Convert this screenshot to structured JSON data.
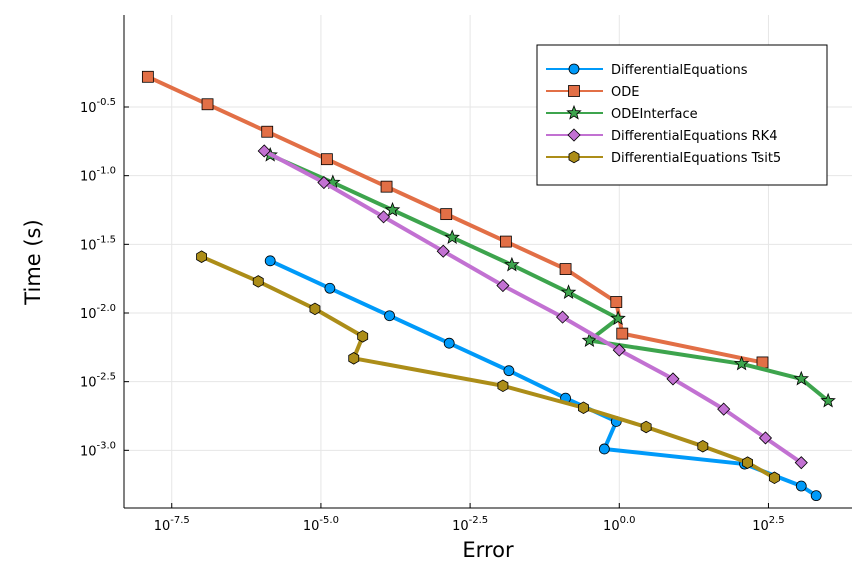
{
  "chart_data": {
    "type": "line",
    "title": "",
    "xlabel": "Error",
    "ylabel": "Time (s)",
    "xscale": "log10",
    "yscale": "log10",
    "xlim_log10": [
      -8.3,
      3.9
    ],
    "ylim_log10": [
      -3.42,
      0.17
    ],
    "grid": true,
    "legend_position": "top-right",
    "x_ticks": [
      {
        "base": "10",
        "exp": "-7.5",
        "value": -7.5
      },
      {
        "base": "10",
        "exp": "-5.0",
        "value": -5.0
      },
      {
        "base": "10",
        "exp": "-2.5",
        "value": -2.5
      },
      {
        "base": "10",
        "exp": "0.0",
        "value": 0.0
      },
      {
        "base": "10",
        "exp": "2.5",
        "value": 2.5
      }
    ],
    "y_ticks": [
      {
        "base": "10",
        "exp": "-0.5",
        "value": -0.5
      },
      {
        "base": "10",
        "exp": "-1.0",
        "value": -1.0
      },
      {
        "base": "10",
        "exp": "-1.5",
        "value": -1.5
      },
      {
        "base": "10",
        "exp": "-2.0",
        "value": -2.0
      },
      {
        "base": "10",
        "exp": "-2.5",
        "value": -2.5
      },
      {
        "base": "10",
        "exp": "-3.0",
        "value": -3.0
      }
    ],
    "series": [
      {
        "name": "DifferentialEquations",
        "color": "#009af9",
        "marker": "circle",
        "log10_error": [
          -5.85,
          -4.85,
          -3.85,
          -2.85,
          -1.85,
          -0.9,
          -0.05,
          -0.25,
          2.1,
          3.05,
          3.3
        ],
        "log10_time": [
          -1.62,
          -1.82,
          -2.02,
          -2.22,
          -2.42,
          -2.62,
          -2.79,
          -2.99,
          -3.1,
          -3.26,
          -3.33
        ]
      },
      {
        "name": "ODE",
        "color": "#e26f46",
        "marker": "square",
        "log10_error": [
          -7.9,
          -6.9,
          -5.9,
          -4.9,
          -3.9,
          -2.9,
          -1.9,
          -0.9,
          -0.05,
          0.05,
          2.4
        ],
        "log10_time": [
          -0.28,
          -0.48,
          -0.68,
          -0.88,
          -1.08,
          -1.28,
          -1.48,
          -1.68,
          -1.92,
          -2.15,
          -2.36
        ]
      },
      {
        "name": "ODEInterface",
        "color": "#3da44d",
        "marker": "star",
        "log10_error": [
          -5.85,
          -4.8,
          -3.8,
          -2.8,
          -1.8,
          -0.85,
          -0.02,
          -0.5,
          2.05,
          3.05,
          3.5
        ],
        "log10_time": [
          -0.85,
          -1.05,
          -1.25,
          -1.45,
          -1.65,
          -1.85,
          -2.04,
          -2.2,
          -2.37,
          -2.48,
          -2.64
        ]
      },
      {
        "name": "DifferentialEquations RK4",
        "color": "#c271d2",
        "marker": "diamond",
        "log10_error": [
          -5.95,
          -4.95,
          -3.95,
          -2.95,
          -1.95,
          -0.95,
          0.0,
          0.9,
          1.75,
          2.45,
          3.05
        ],
        "log10_time": [
          -0.82,
          -1.05,
          -1.3,
          -1.55,
          -1.8,
          -2.03,
          -2.27,
          -2.48,
          -2.7,
          -2.91,
          -3.09
        ]
      },
      {
        "name": "DifferentialEquations Tsit5",
        "color": "#ac8d18",
        "marker": "hexagon",
        "log10_error": [
          -7.0,
          -6.05,
          -5.1,
          -4.3,
          -4.45,
          -1.95,
          -0.6,
          0.45,
          1.4,
          2.15,
          2.6
        ],
        "log10_time": [
          -1.59,
          -1.77,
          -1.97,
          -2.17,
          -2.33,
          -2.53,
          -2.69,
          -2.83,
          -2.97,
          -3.09,
          -3.2
        ]
      }
    ]
  }
}
